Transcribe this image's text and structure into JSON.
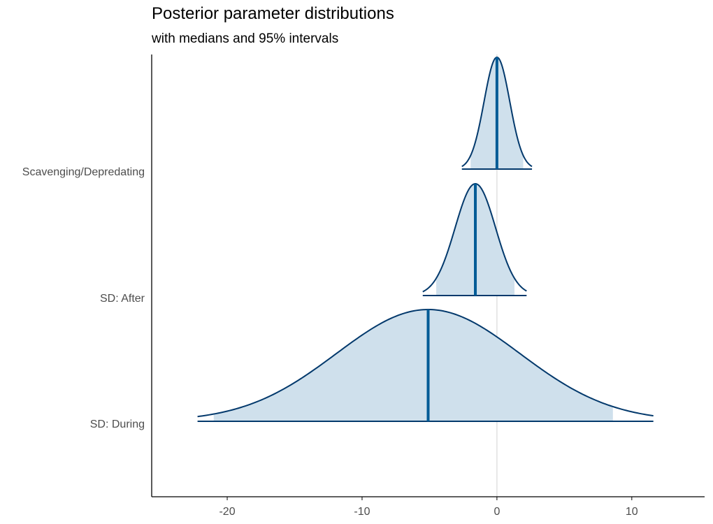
{
  "chart_data": {
    "type": "density",
    "title": "Posterior parameter distributions",
    "subtitle": "with medians and 95% intervals",
    "xlabel": "",
    "ylabel": "",
    "xlim": [
      -25.6,
      15.4
    ],
    "xticks": [
      -20,
      -10,
      0,
      10
    ],
    "reference_line_x": 0,
    "colors": {
      "outline": "#03396c",
      "fill": "#cfe0ec",
      "median": "#005b96",
      "refline": "#dedede"
    },
    "series": [
      {
        "name": "Scavenging/Depredating",
        "min": -2.6,
        "max": 2.6,
        "median": 0.0,
        "ci95": [
          -1.95,
          1.95
        ],
        "sd": 0.95
      },
      {
        "name": "SD: After",
        "min": -5.5,
        "max": 2.2,
        "median": -1.6,
        "ci95": [
          -4.5,
          1.3
        ],
        "sd": 1.5
      },
      {
        "name": "SD: During",
        "min": -22.2,
        "max": 11.6,
        "median": -5.1,
        "ci95": [
          -21.0,
          8.6
        ],
        "sd": 6.8
      }
    ]
  }
}
